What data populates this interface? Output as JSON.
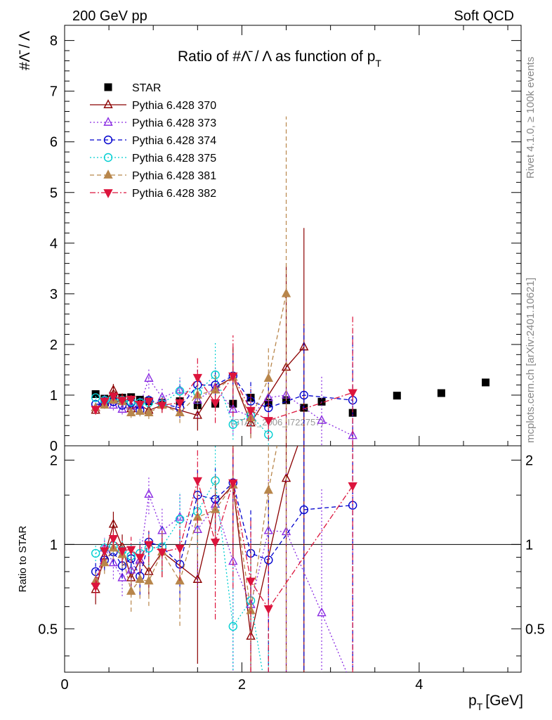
{
  "header": {
    "left": "200 GeV pp",
    "right": "Soft QCD"
  },
  "side_labels": {
    "rivet": "Rivet 4.1.0, ≥ 100k events",
    "source": "mcplots.cern.ch [arXiv:2401.10621]"
  },
  "chart_data": [
    {
      "type": "scatter",
      "title": "Ratio of #Λ̄ / Λ as function of p",
      "title_sub": "T",
      "ylabel": "#Λ̄ / Λ",
      "xlim": [
        0,
        5.15
      ],
      "ylim": [
        0,
        8.3
      ],
      "yticks": [
        "0",
        "1",
        "2",
        "3",
        "4",
        "5",
        "6",
        "7",
        "8"
      ],
      "watermark": "(STAR_2006_I722757)",
      "legend_position": "top-left",
      "series": [
        {
          "name": "STAR",
          "color": "#000000",
          "marker": "square-filled",
          "line": "none",
          "x": [
            0.35,
            0.45,
            0.55,
            0.65,
            0.75,
            0.85,
            0.95,
            1.1,
            1.3,
            1.5,
            1.7,
            1.9,
            2.1,
            2.3,
            2.5,
            2.7,
            2.9,
            3.25,
            3.75,
            4.25,
            4.75
          ],
          "y": [
            1.02,
            0.93,
            0.93,
            0.95,
            0.96,
            0.91,
            0.88,
            0.85,
            0.88,
            0.8,
            0.83,
            0.83,
            0.95,
            0.85,
            0.9,
            0.75,
            0.87,
            0.65,
            0.99,
            1.04,
            1.25
          ]
        },
        {
          "name": "Pythia 6.428 370",
          "color": "#8b0000",
          "marker": "triangle-up-open",
          "line": "solid",
          "x": [
            0.35,
            0.45,
            0.55,
            0.65,
            0.75,
            0.85,
            0.95,
            1.1,
            1.5,
            1.7,
            1.9,
            2.1,
            2.5,
            2.7
          ],
          "y": [
            0.7,
            0.85,
            1.1,
            0.93,
            0.73,
            0.8,
            0.7,
            0.8,
            0.6,
            1.15,
            1.35,
            0.45,
            1.55,
            1.95
          ],
          "err": [
            0.08,
            0.08,
            0.12,
            0.1,
            0.1,
            0.1,
            0.12,
            0.15,
            0.3,
            0.25,
            0.6,
            0.3,
            2.0,
            2.35
          ]
        },
        {
          "name": "Pythia 6.428 373",
          "color": "#8a2be2",
          "marker": "triangle-up-open",
          "line": "dotted",
          "x": [
            0.35,
            0.45,
            0.55,
            0.65,
            0.75,
            0.85,
            0.95,
            1.1,
            1.3,
            1.5,
            1.7,
            1.9,
            2.1,
            2.3,
            2.5,
            2.9,
            3.25
          ],
          "y": [
            0.75,
            0.9,
            0.8,
            0.72,
            0.78,
            0.8,
            1.33,
            0.95,
            1.1,
            0.9,
            1.15,
            0.72,
            0.58,
            0.95,
            1.0,
            0.5,
            0.2
          ],
          "err": [
            0.08,
            0.08,
            0.1,
            0.1,
            0.1,
            0.15,
            0.2,
            0.2,
            0.25,
            0.35,
            0.4,
            0.5,
            0.4,
            0.5,
            0.8,
            0.9,
            1.0
          ]
        },
        {
          "name": "Pythia 6.428 374",
          "color": "#0000cd",
          "marker": "circle-open",
          "line": "dashed",
          "x": [
            0.35,
            0.45,
            0.55,
            0.65,
            0.75,
            0.85,
            0.95,
            1.1,
            1.3,
            1.5,
            1.7,
            1.9,
            2.1,
            2.3,
            2.7,
            3.25
          ],
          "y": [
            0.82,
            0.82,
            0.87,
            0.8,
            0.85,
            0.7,
            0.9,
            0.83,
            0.75,
            1.2,
            1.2,
            1.38,
            0.88,
            0.75,
            1.0,
            0.9
          ],
          "err": [
            0.06,
            0.07,
            0.08,
            0.08,
            0.1,
            0.1,
            0.1,
            0.15,
            0.2,
            0.3,
            0.35,
            0.45,
            0.4,
            0.5,
            1.4,
            1.3
          ]
        },
        {
          "name": "Pythia 6.428 375",
          "color": "#00ced1",
          "marker": "circle-open",
          "line": "dotted",
          "x": [
            0.35,
            0.45,
            0.55,
            0.65,
            0.75,
            0.85,
            0.95,
            1.1,
            1.3,
            1.5,
            1.7,
            1.9,
            2.1,
            2.3
          ],
          "y": [
            0.95,
            0.9,
            0.92,
            0.9,
            0.87,
            0.85,
            0.85,
            0.83,
            1.08,
            1.05,
            1.4,
            0.42,
            0.6,
            0.22
          ],
          "err": [
            0.06,
            0.07,
            0.08,
            0.09,
            0.1,
            0.1,
            0.12,
            0.15,
            0.25,
            0.3,
            0.65,
            0.3,
            0.3,
            0.2
          ]
        },
        {
          "name": "Pythia 6.428 381",
          "color": "#b8864b",
          "marker": "triangle-up-filled",
          "line": "dashed",
          "x": [
            0.35,
            0.45,
            0.55,
            0.65,
            0.75,
            0.85,
            0.95,
            1.1,
            1.3,
            1.5,
            1.7,
            1.9,
            2.1,
            2.3,
            2.5
          ],
          "y": [
            0.75,
            0.8,
            0.9,
            0.87,
            0.65,
            0.68,
            0.65,
            0.8,
            0.65,
            1.0,
            1.1,
            1.35,
            0.55,
            1.33,
            3.0
          ],
          "err": [
            0.06,
            0.07,
            0.08,
            0.09,
            0.1,
            0.1,
            0.12,
            0.15,
            0.2,
            0.3,
            0.35,
            0.5,
            0.4,
            0.6,
            3.5
          ]
        },
        {
          "name": "Pythia 6.428 382",
          "color": "#dc143c",
          "marker": "triangle-down-filled",
          "line": "dashdot",
          "x": [
            0.35,
            0.45,
            0.55,
            0.65,
            0.75,
            0.85,
            0.95,
            1.1,
            1.3,
            1.5,
            1.7,
            1.9,
            2.1,
            2.3,
            3.25
          ],
          "y": [
            0.72,
            0.88,
            0.98,
            0.9,
            0.92,
            0.82,
            0.88,
            0.8,
            0.85,
            1.35,
            0.85,
            1.38,
            0.7,
            0.5,
            1.05
          ],
          "err": [
            0.06,
            0.07,
            0.08,
            0.09,
            0.1,
            0.1,
            0.12,
            0.15,
            0.2,
            0.4,
            0.4,
            0.8,
            0.45,
            0.4,
            1.5
          ]
        }
      ]
    },
    {
      "type": "line",
      "ylabel": "Ratio to STAR",
      "xlabel": "p",
      "xlabel_sub": "T",
      "xlabel_unit": "[GeV]",
      "xlim": [
        0,
        5.15
      ],
      "ylim": [
        0.35,
        2.25
      ],
      "xticks": [
        "0",
        "2",
        "4"
      ],
      "yticks": [
        "0.5",
        "1",
        "2"
      ],
      "reference_line": 1,
      "series": [
        {
          "name": "Pythia 6.428 370",
          "x": [
            0.35,
            0.45,
            0.55,
            0.65,
            0.75,
            0.85,
            0.95,
            1.1,
            1.5,
            1.7,
            1.9,
            2.1,
            2.5,
            2.7
          ],
          "y": [
            0.69,
            0.91,
            1.18,
            0.98,
            0.76,
            0.88,
            0.8,
            0.94,
            0.75,
            1.39,
            1.63,
            0.47,
            1.72,
            2.6
          ]
        },
        {
          "name": "Pythia 6.428 373",
          "x": [
            0.35,
            0.45,
            0.55,
            0.65,
            0.75,
            0.85,
            0.95,
            1.1,
            1.3,
            1.5,
            1.7,
            1.9,
            2.1,
            2.3,
            2.5,
            2.9,
            3.25
          ],
          "y": [
            0.74,
            0.97,
            0.86,
            0.76,
            0.81,
            0.88,
            1.51,
            1.12,
            1.25,
            1.13,
            1.39,
            0.87,
            0.61,
            1.12,
            1.11,
            0.57,
            0.31
          ]
        },
        {
          "name": "Pythia 6.428 374",
          "x": [
            0.35,
            0.45,
            0.55,
            0.65,
            0.75,
            0.85,
            0.95,
            1.1,
            1.3,
            1.5,
            1.7,
            1.9,
            2.1,
            2.3,
            2.7,
            3.25
          ],
          "y": [
            0.8,
            0.88,
            0.94,
            0.84,
            0.89,
            0.77,
            1.02,
            0.98,
            0.85,
            1.5,
            1.45,
            1.66,
            0.93,
            0.88,
            1.33,
            1.38
          ]
        },
        {
          "name": "Pythia 6.428 375",
          "x": [
            0.35,
            0.45,
            0.55,
            0.65,
            0.75,
            0.85,
            0.95,
            1.1,
            1.3,
            1.5,
            1.7,
            1.9,
            2.1,
            2.3
          ],
          "y": [
            0.93,
            0.97,
            0.99,
            0.95,
            0.91,
            0.93,
            0.97,
            0.98,
            1.23,
            1.31,
            1.69,
            0.51,
            0.63,
            0.26
          ]
        },
        {
          "name": "Pythia 6.428 381",
          "x": [
            0.35,
            0.45,
            0.55,
            0.65,
            0.75,
            0.85,
            0.95,
            1.1,
            1.3,
            1.5,
            1.7,
            1.9,
            2.1,
            2.3,
            2.5
          ],
          "y": [
            0.74,
            0.86,
            0.97,
            0.92,
            0.68,
            0.75,
            0.74,
            0.94,
            0.74,
            1.25,
            1.33,
            1.63,
            0.58,
            1.56,
            3.33
          ]
        },
        {
          "name": "Pythia 6.428 382",
          "x": [
            0.35,
            0.45,
            0.55,
            0.65,
            0.75,
            0.85,
            0.95,
            1.1,
            1.3,
            1.5,
            1.7,
            1.9,
            2.1,
            2.3,
            3.25
          ],
          "y": [
            0.71,
            0.95,
            1.05,
            0.95,
            0.96,
            0.9,
            1.0,
            0.94,
            0.97,
            1.69,
            1.02,
            1.66,
            0.74,
            0.59,
            1.62
          ]
        }
      ]
    }
  ]
}
